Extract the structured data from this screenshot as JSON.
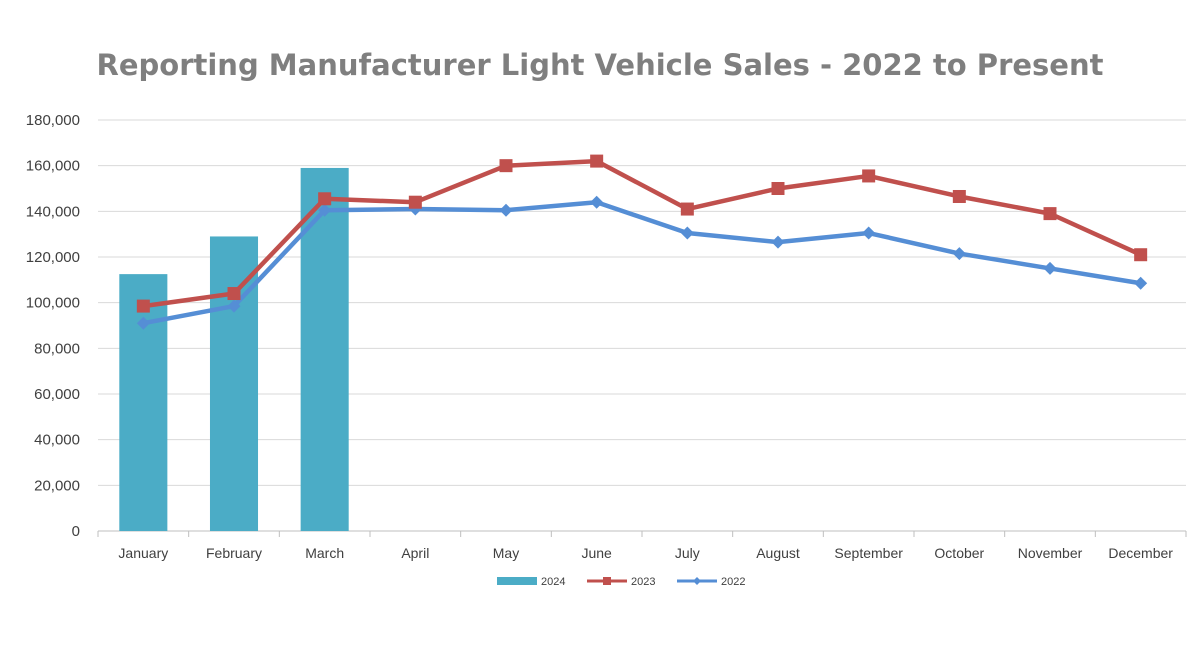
{
  "chart_data": {
    "type": "bar",
    "title": "Reporting Manufacturer Light Vehicle Sales - 2022 to Present",
    "xlabel": "",
    "ylabel": "",
    "categories": [
      "January",
      "February",
      "March",
      "April",
      "May",
      "June",
      "July",
      "August",
      "September",
      "October",
      "November",
      "December"
    ],
    "ylim": [
      0,
      180000
    ],
    "y_ticks": [
      "0",
      "20,000",
      "40,000",
      "60,000",
      "80,000",
      "100,000",
      "120,000",
      "140,000",
      "160,000",
      "180,000"
    ],
    "y_tick_values": [
      0,
      20000,
      40000,
      60000,
      80000,
      100000,
      120000,
      140000,
      160000,
      180000
    ],
    "grid": true,
    "legend_position": "bottom",
    "series": [
      {
        "name": "2024",
        "type": "bar",
        "color": "#4bacc6",
        "values": [
          112500,
          129000,
          159000,
          null,
          null,
          null,
          null,
          null,
          null,
          null,
          null,
          null
        ]
      },
      {
        "name": "2023",
        "type": "line",
        "marker": "square",
        "color": "#c0504d",
        "values": [
          98500,
          104000,
          145500,
          144000,
          160000,
          162000,
          141000,
          150000,
          155500,
          146500,
          139000,
          121000
        ]
      },
      {
        "name": "2022",
        "type": "line",
        "marker": "diamond",
        "color": "#558ed5",
        "values": [
          91000,
          98500,
          140500,
          141000,
          140500,
          144000,
          130500,
          126500,
          130500,
          121500,
          115000,
          108500
        ]
      }
    ]
  }
}
